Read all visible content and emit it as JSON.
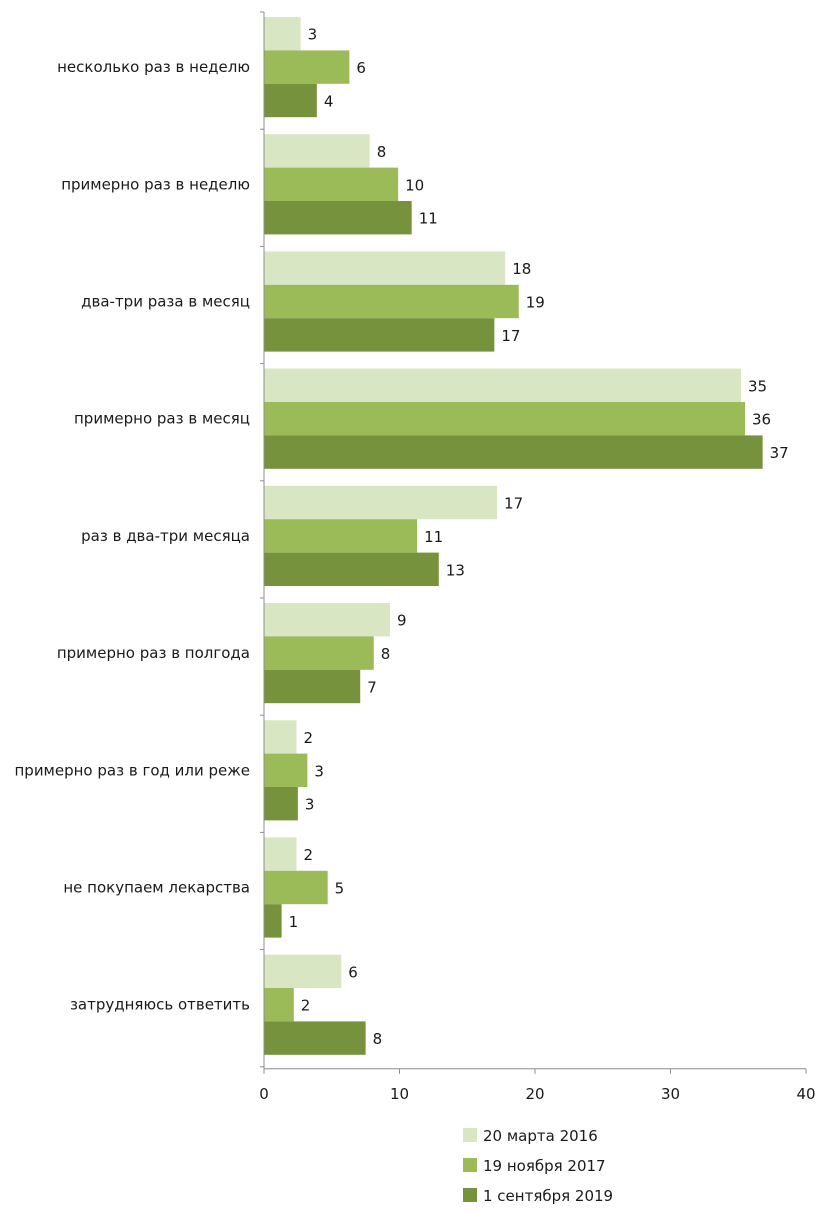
{
  "chart_data": {
    "type": "bar",
    "orientation": "horizontal",
    "categories": [
      "несколько раз в неделю",
      "примерно раз в неделю",
      "два-три раза в месяц",
      "примерно раз в месяц",
      "раз в два-три месяца",
      "примерно раз в полгода",
      "примерно раз в год или реже",
      "не покупаем лекарства",
      "затрудняюсь ответить"
    ],
    "series": [
      {
        "name": "20 марта 2016",
        "color": "#d9e6c3",
        "values": [
          3,
          8,
          18,
          35,
          17,
          9,
          2,
          2,
          6
        ],
        "bar_lengths": [
          2.7,
          7.8,
          17.8,
          35.2,
          17.2,
          9.3,
          2.4,
          2.4,
          5.7
        ]
      },
      {
        "name": "19 ноября 2017",
        "color": "#9bbb59",
        "values": [
          6,
          10,
          19,
          36,
          11,
          8,
          3,
          5,
          2
        ],
        "bar_lengths": [
          6.3,
          9.9,
          18.8,
          35.5,
          11.3,
          8.1,
          3.2,
          4.7,
          2.2
        ]
      },
      {
        "name": "1 сентября 2019",
        "color": "#76923c",
        "values": [
          4,
          11,
          17,
          37,
          13,
          7,
          3,
          1,
          8
        ],
        "bar_lengths": [
          3.9,
          10.9,
          17.0,
          36.8,
          12.9,
          7.1,
          2.5,
          1.3,
          7.5
        ]
      }
    ],
    "xlim": [
      0,
      40
    ],
    "xticks": [
      "0",
      "10",
      "20",
      "30",
      "40"
    ],
    "legend_position": "bottom",
    "grid": false
  }
}
